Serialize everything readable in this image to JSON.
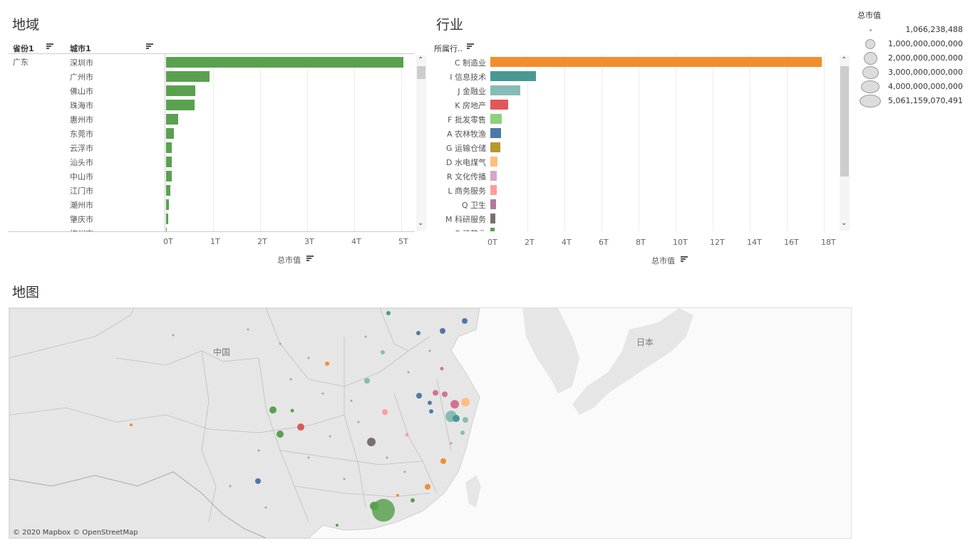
{
  "region": {
    "title": "地域",
    "province_header": "省份1",
    "city_header": "城市1",
    "province": "广东",
    "axis_title": "总市值",
    "axis_ticks": [
      "0T",
      "1T",
      "2T",
      "3T",
      "4T",
      "5T"
    ],
    "rows": [
      {
        "city": "深圳市",
        "value": 5.05
      },
      {
        "city": "广州市",
        "value": 0.93
      },
      {
        "city": "佛山市",
        "value": 0.62
      },
      {
        "city": "珠海市",
        "value": 0.6
      },
      {
        "city": "惠州市",
        "value": 0.26
      },
      {
        "city": "东莞市",
        "value": 0.17
      },
      {
        "city": "云浮市",
        "value": 0.12
      },
      {
        "city": "汕头市",
        "value": 0.12
      },
      {
        "city": "中山市",
        "value": 0.12
      },
      {
        "city": "江门市",
        "value": 0.09
      },
      {
        "city": "潮州市",
        "value": 0.06
      },
      {
        "city": "肇庆市",
        "value": 0.04
      },
      {
        "city": "梅州市",
        "value": 0.02
      }
    ],
    "bar_color": "#59A14F"
  },
  "industry": {
    "title": "行业",
    "header": "所属行..",
    "axis_title": "总市值",
    "axis_ticks": [
      "0T",
      "2T",
      "4T",
      "6T",
      "8T",
      "10T",
      "12T",
      "14T",
      "16T",
      "18T"
    ],
    "rows": [
      {
        "label": "C 制造业",
        "value": 17.9,
        "color": "#F28E2B"
      },
      {
        "label": "I 信息技术",
        "value": 2.45,
        "color": "#499894"
      },
      {
        "label": "J 金融业",
        "value": 1.6,
        "color": "#86BCB6"
      },
      {
        "label": "K 房地产",
        "value": 0.95,
        "color": "#E15759"
      },
      {
        "label": "F 批发零售",
        "value": 0.62,
        "color": "#8CD17D"
      },
      {
        "label": "A 农林牧渔",
        "value": 0.58,
        "color": "#4E79A7"
      },
      {
        "label": "G 运输仓储",
        "value": 0.52,
        "color": "#B6992D"
      },
      {
        "label": "D 水电煤气",
        "value": 0.38,
        "color": "#FFBE7D"
      },
      {
        "label": "R 文化传播",
        "value": 0.36,
        "color": "#D4A6C8"
      },
      {
        "label": "L 商务服务",
        "value": 0.34,
        "color": "#FF9D9A"
      },
      {
        "label": "Q 卫生",
        "value": 0.3,
        "color": "#B07AA1"
      },
      {
        "label": "M 科研服务",
        "value": 0.28,
        "color": "#79706E"
      },
      {
        "label": "E 建筑业",
        "value": 0.22,
        "color": "#59A14F"
      }
    ]
  },
  "legend": {
    "title": "总市值",
    "items": [
      "1,066,238,488",
      "1,000,000,000,000",
      "2,000,000,000,000",
      "3,000,000,000,000",
      "4,000,000,000,000",
      "5,061,159,070,491"
    ],
    "size_fraction": [
      0.0,
      0.2,
      0.4,
      0.6,
      0.8,
      1.0
    ]
  },
  "map": {
    "title": "地图",
    "label_china": "中国",
    "label_japan": "日本",
    "attribution": "© 2020 Mapbox © OpenStreetMap"
  }
}
